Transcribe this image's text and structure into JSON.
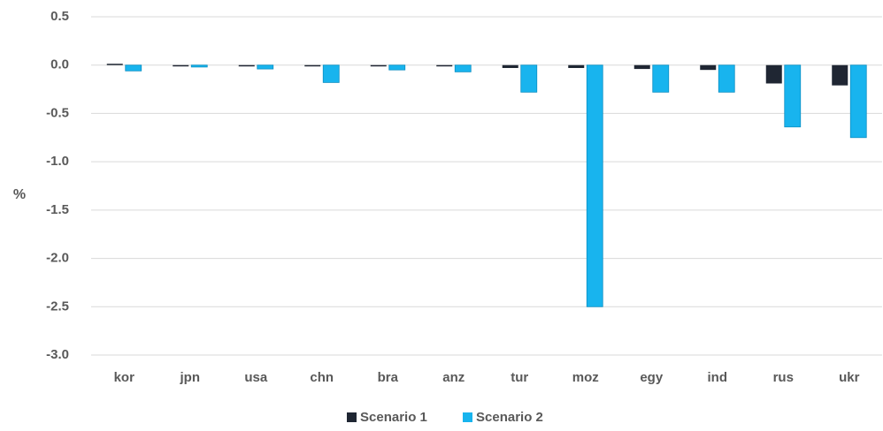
{
  "chart_data": {
    "type": "bar",
    "ylabel": "%",
    "ylim": [
      -3.0,
      0.5
    ],
    "y_ticks": [
      "0.5",
      "0.0",
      "-0.5",
      "-1.0",
      "-1.5",
      "-2.0",
      "-2.5",
      "-3.0"
    ],
    "y_tick_values": [
      0.5,
      0.0,
      -0.5,
      -1.0,
      -1.5,
      -2.0,
      -2.5,
      -3.0
    ],
    "grid": true,
    "legend_position": "bottom",
    "categories": [
      "kor",
      "jpn",
      "usa",
      "chn",
      "bra",
      "anz",
      "tur",
      "moz",
      "egy",
      "ind",
      "rus",
      "ukr"
    ],
    "series": [
      {
        "name": "Scenario 1",
        "color": "#1f2633",
        "values": [
          0.01,
          -0.01,
          -0.01,
          -0.01,
          -0.01,
          -0.01,
          -0.03,
          -0.03,
          -0.04,
          -0.05,
          -0.19,
          -0.21
        ]
      },
      {
        "name": "Scenario 2",
        "color": "#18b4ee",
        "values": [
          -0.06,
          -0.02,
          -0.04,
          -0.18,
          -0.05,
          -0.07,
          -0.28,
          -2.5,
          -0.28,
          -0.28,
          -0.64,
          -0.75
        ]
      }
    ]
  }
}
